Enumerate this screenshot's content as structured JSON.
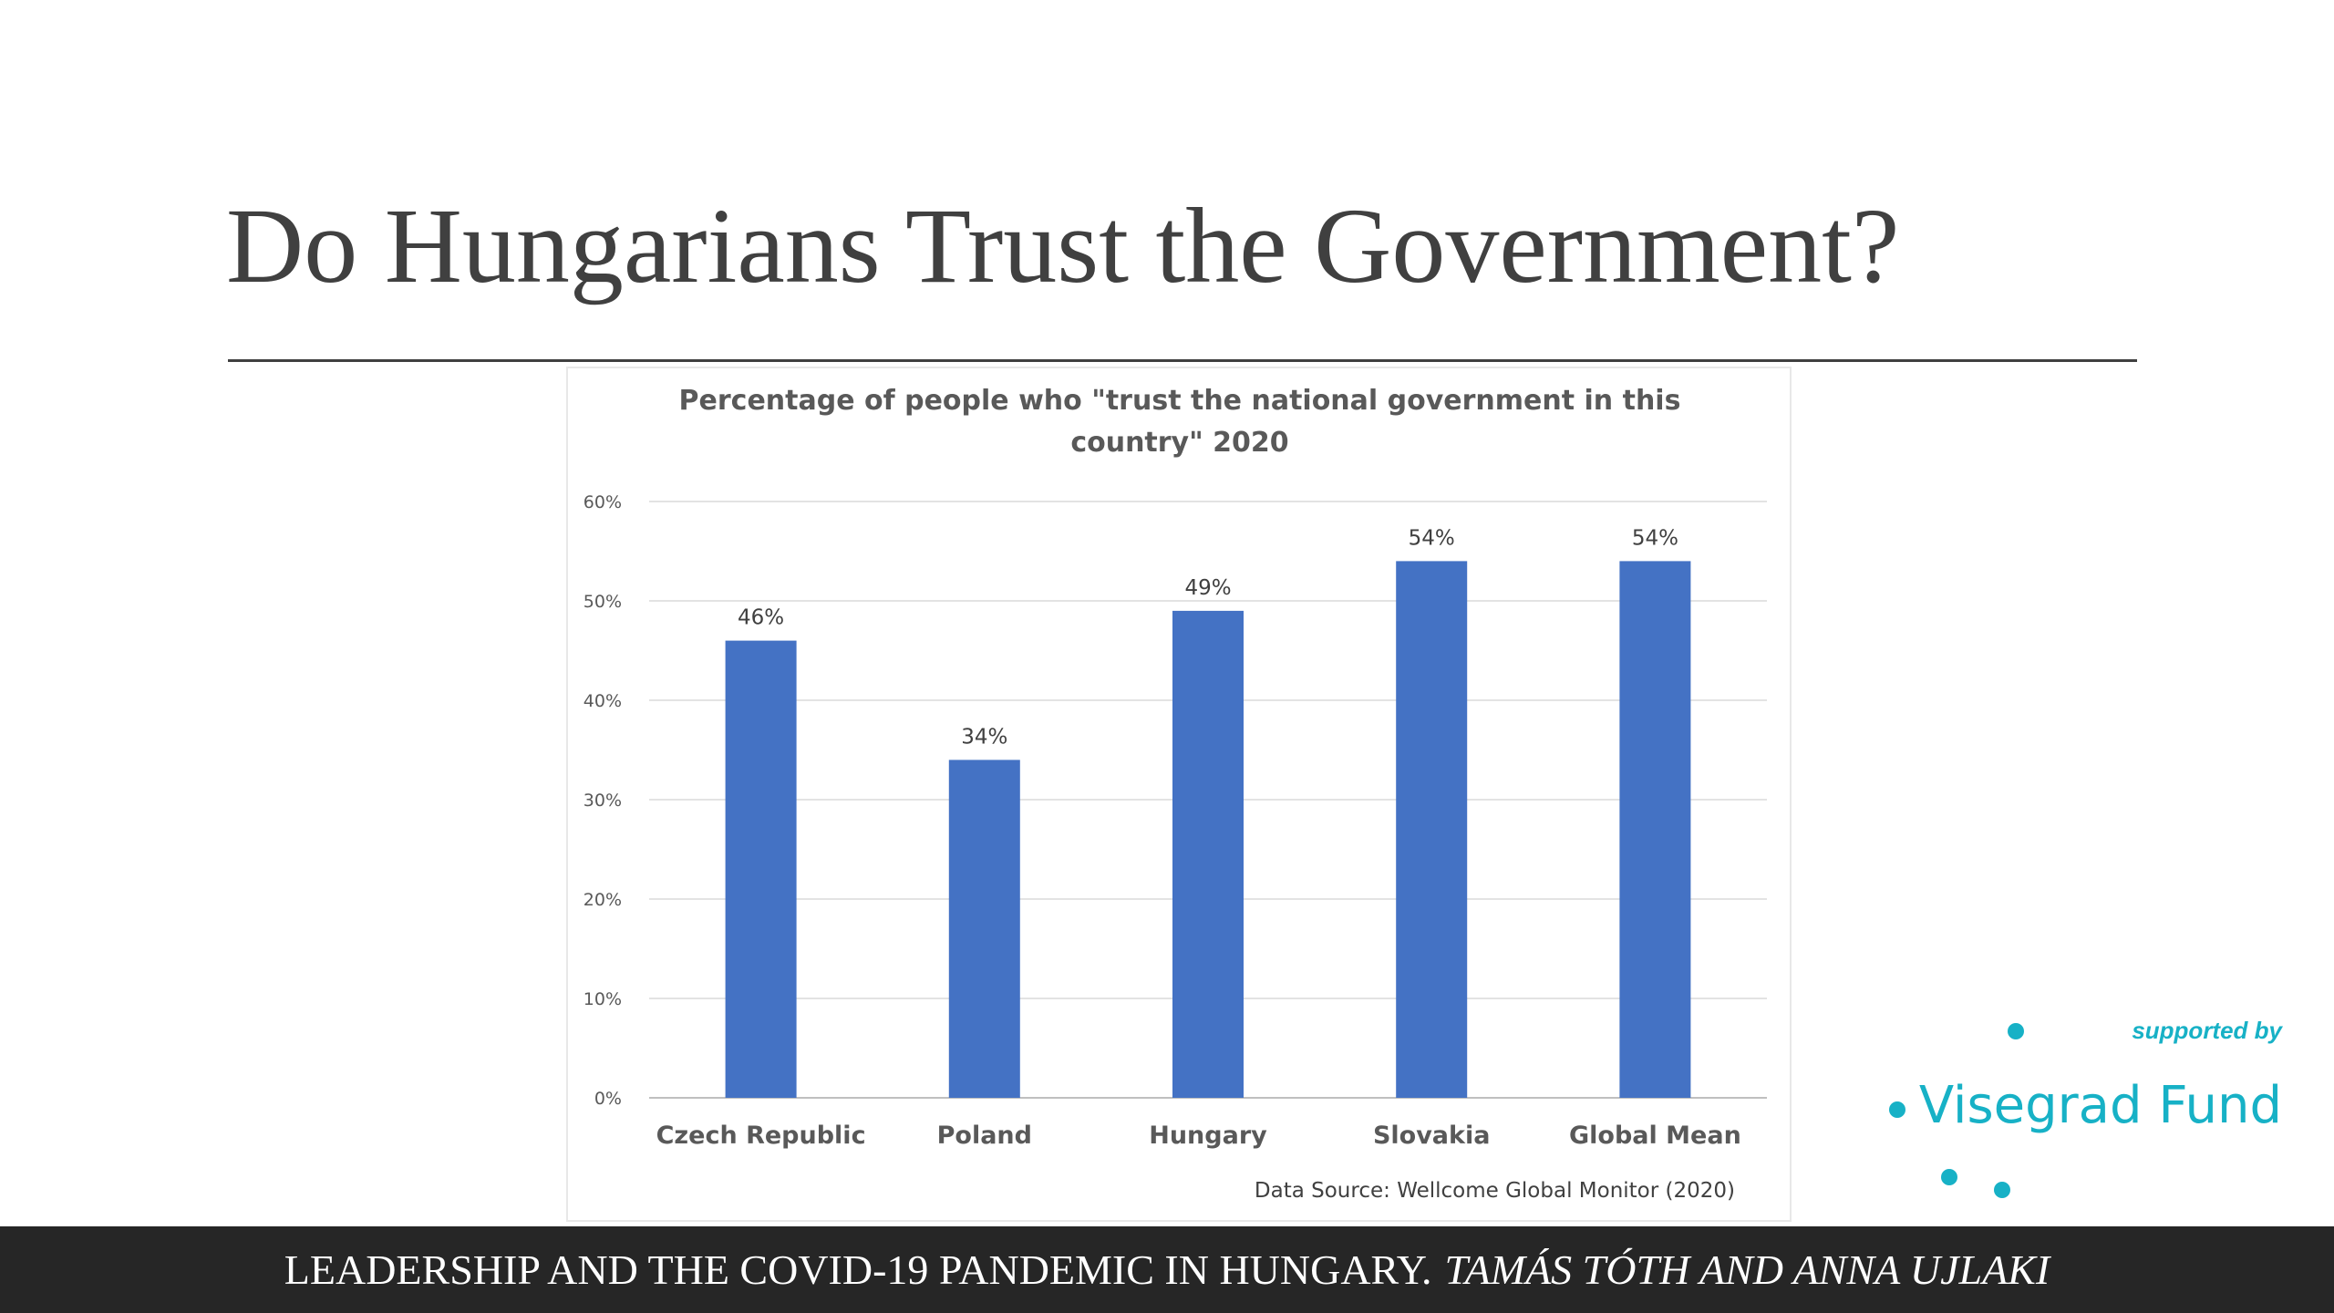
{
  "slide": {
    "title": "Do Hungarians Trust the Government?",
    "footer_main": "LEADERSHIP AND THE COVID-19 PANDEMIC IN HUNGARY.",
    "footer_authors": "TAMÁS TÓTH AND ANNA UJLAKI"
  },
  "logo": {
    "supported_by": "supported by",
    "name": "Visegrad Fund",
    "color": "#17b1c6"
  },
  "chart_data": {
    "type": "bar",
    "title": "Percentage of people who \"trust the national government in this country\" 2020",
    "title_lines": [
      "Percentage of people who \"trust the national government in this",
      "country\" 2020"
    ],
    "categories": [
      "Czech Republic",
      "Poland",
      "Hungary",
      "Slovakia",
      "Global Mean"
    ],
    "values": [
      46,
      34,
      49,
      54,
      54
    ],
    "data_labels": [
      "46%",
      "34%",
      "49%",
      "54%",
      "54%"
    ],
    "ylim": [
      0,
      60
    ],
    "yticks": [
      0,
      10,
      20,
      30,
      40,
      50,
      60
    ],
    "ytick_labels": [
      "0%",
      "10%",
      "20%",
      "30%",
      "40%",
      "50%",
      "60%"
    ],
    "xlabel": "",
    "ylabel": "",
    "grid": true,
    "bar_color": "#4472c4",
    "source_note": "Data Source: Wellcome Global Monitor (2020)"
  }
}
